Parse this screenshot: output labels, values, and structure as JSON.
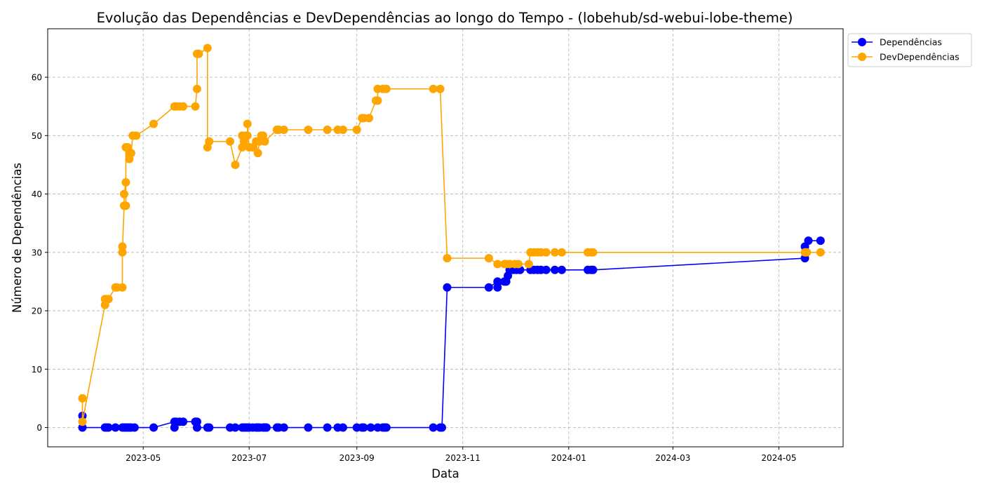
{
  "chart_data": {
    "type": "line",
    "title": "Evolução das Dependências e DevDependências ao longo do Tempo - (lobehub/sd-webui-lobe-theme)",
    "xlabel": "Data",
    "ylabel": "Número de Dependências",
    "x_ticks": [
      "2023-05",
      "2023-07",
      "2023-09",
      "2023-11",
      "2024-01",
      "2024-03",
      "2024-05"
    ],
    "x_tick_dates": [
      "2023-05-01",
      "2023-07-01",
      "2023-09-01",
      "2023-11-01",
      "2024-01-01",
      "2024-03-01",
      "2024-05-01"
    ],
    "xlim": [
      "2023-03-07",
      "2024-06-07"
    ],
    "y_ticks": [
      "0",
      "10",
      "20",
      "30",
      "40",
      "50",
      "60"
    ],
    "y_tick_values": [
      0,
      10,
      20,
      30,
      40,
      50,
      60
    ],
    "ylim": [
      -3.3,
      68.3
    ],
    "grid": true,
    "legend_position": "outside-top-right",
    "series": [
      {
        "name": "Dependências",
        "color": "#0000ff",
        "points": [
          [
            "2023-03-27",
            2
          ],
          [
            "2023-03-27",
            0
          ],
          [
            "2023-04-09",
            0
          ],
          [
            "2023-04-10",
            0
          ],
          [
            "2023-04-11",
            0
          ],
          [
            "2023-04-15",
            0
          ],
          [
            "2023-04-19",
            0
          ],
          [
            "2023-04-20",
            0
          ],
          [
            "2023-04-21",
            0
          ],
          [
            "2023-04-22",
            0
          ],
          [
            "2023-04-23",
            0
          ],
          [
            "2023-04-24",
            0
          ],
          [
            "2023-04-26",
            0
          ],
          [
            "2023-05-07",
            0
          ],
          [
            "2023-05-19",
            1
          ],
          [
            "2023-05-19",
            0
          ],
          [
            "2023-05-20",
            1
          ],
          [
            "2023-05-22",
            1
          ],
          [
            "2023-05-24",
            1
          ],
          [
            "2023-05-31",
            1
          ],
          [
            "2023-06-01",
            1
          ],
          [
            "2023-06-01",
            0
          ],
          [
            "2023-06-07",
            0
          ],
          [
            "2023-06-08",
            0
          ],
          [
            "2023-06-20",
            0
          ],
          [
            "2023-06-23",
            0
          ],
          [
            "2023-06-27",
            0
          ],
          [
            "2023-06-28",
            0
          ],
          [
            "2023-06-29",
            0
          ],
          [
            "2023-06-30",
            0
          ],
          [
            "2023-07-01",
            0
          ],
          [
            "2023-07-03",
            0
          ],
          [
            "2023-07-05",
            0
          ],
          [
            "2023-07-06",
            0
          ],
          [
            "2023-07-07",
            0
          ],
          [
            "2023-07-09",
            0
          ],
          [
            "2023-07-10",
            0
          ],
          [
            "2023-07-11",
            0
          ],
          [
            "2023-07-17",
            0
          ],
          [
            "2023-07-18",
            0
          ],
          [
            "2023-07-21",
            0
          ],
          [
            "2023-08-04",
            0
          ],
          [
            "2023-08-15",
            0
          ],
          [
            "2023-08-21",
            0
          ],
          [
            "2023-08-24",
            0
          ],
          [
            "2023-09-01",
            0
          ],
          [
            "2023-09-04",
            0
          ],
          [
            "2023-09-05",
            0
          ],
          [
            "2023-09-09",
            0
          ],
          [
            "2023-09-13",
            0
          ],
          [
            "2023-09-16",
            0
          ],
          [
            "2023-09-17",
            0
          ],
          [
            "2023-09-18",
            0
          ],
          [
            "2023-10-15",
            0
          ],
          [
            "2023-10-19",
            0
          ],
          [
            "2023-10-20",
            0
          ],
          [
            "2023-10-23",
            24
          ],
          [
            "2023-11-16",
            24
          ],
          [
            "2023-11-21",
            25
          ],
          [
            "2023-11-21",
            24
          ],
          [
            "2023-11-25",
            25
          ],
          [
            "2023-11-26",
            25
          ],
          [
            "2023-11-27",
            26
          ],
          [
            "2023-11-28",
            27
          ],
          [
            "2023-11-30",
            27
          ],
          [
            "2023-12-02",
            27
          ],
          [
            "2023-12-04",
            27
          ],
          [
            "2023-12-10",
            27
          ],
          [
            "2023-12-12",
            27
          ],
          [
            "2023-12-14",
            27
          ],
          [
            "2023-12-16",
            27
          ],
          [
            "2023-12-19",
            27
          ],
          [
            "2023-12-24",
            27
          ],
          [
            "2023-12-28",
            27
          ],
          [
            "2024-01-12",
            27
          ],
          [
            "2024-01-14",
            27
          ],
          [
            "2024-01-15",
            27
          ],
          [
            "2024-05-16",
            29
          ],
          [
            "2024-05-16",
            31
          ],
          [
            "2024-05-17",
            30
          ],
          [
            "2024-05-18",
            32
          ],
          [
            "2024-05-25",
            32
          ]
        ]
      },
      {
        "name": "DevDependências",
        "color": "#ffa500",
        "points": [
          [
            "2023-03-27",
            5
          ],
          [
            "2023-03-27",
            1
          ],
          [
            "2023-04-09",
            21
          ],
          [
            "2023-04-09",
            22
          ],
          [
            "2023-04-10",
            22
          ],
          [
            "2023-04-11",
            22
          ],
          [
            "2023-04-15",
            24
          ],
          [
            "2023-04-16",
            24
          ],
          [
            "2023-04-19",
            24
          ],
          [
            "2023-04-19",
            31
          ],
          [
            "2023-04-19",
            30
          ],
          [
            "2023-04-20",
            38
          ],
          [
            "2023-04-20",
            40
          ],
          [
            "2023-04-21",
            42
          ],
          [
            "2023-04-21",
            38
          ],
          [
            "2023-04-21",
            48
          ],
          [
            "2023-04-22",
            48
          ],
          [
            "2023-04-23",
            47
          ],
          [
            "2023-04-23",
            46
          ],
          [
            "2023-04-24",
            47
          ],
          [
            "2023-04-25",
            50
          ],
          [
            "2023-04-27",
            50
          ],
          [
            "2023-05-07",
            52
          ],
          [
            "2023-05-19",
            55
          ],
          [
            "2023-05-20",
            55
          ],
          [
            "2023-05-22",
            55
          ],
          [
            "2023-05-24",
            55
          ],
          [
            "2023-05-31",
            55
          ],
          [
            "2023-06-01",
            58
          ],
          [
            "2023-06-01",
            64
          ],
          [
            "2023-06-02",
            64
          ],
          [
            "2023-06-07",
            65
          ],
          [
            "2023-06-07",
            48
          ],
          [
            "2023-06-08",
            49
          ],
          [
            "2023-06-20",
            49
          ],
          [
            "2023-06-23",
            45
          ],
          [
            "2023-06-27",
            48
          ],
          [
            "2023-06-27",
            50
          ],
          [
            "2023-06-28",
            49
          ],
          [
            "2023-06-29",
            50
          ],
          [
            "2023-06-30",
            50
          ],
          [
            "2023-06-30",
            52
          ],
          [
            "2023-07-01",
            48
          ],
          [
            "2023-07-03",
            48
          ],
          [
            "2023-07-05",
            49
          ],
          [
            "2023-07-06",
            47
          ],
          [
            "2023-07-07",
            49
          ],
          [
            "2023-07-08",
            50
          ],
          [
            "2023-07-09",
            50
          ],
          [
            "2023-07-10",
            49
          ],
          [
            "2023-07-17",
            51
          ],
          [
            "2023-07-18",
            51
          ],
          [
            "2023-07-21",
            51
          ],
          [
            "2023-08-04",
            51
          ],
          [
            "2023-08-15",
            51
          ],
          [
            "2023-08-21",
            51
          ],
          [
            "2023-08-24",
            51
          ],
          [
            "2023-09-01",
            51
          ],
          [
            "2023-09-04",
            53
          ],
          [
            "2023-09-05",
            53
          ],
          [
            "2023-09-08",
            53
          ],
          [
            "2023-09-12",
            56
          ],
          [
            "2023-09-13",
            56
          ],
          [
            "2023-09-13",
            58
          ],
          [
            "2023-09-16",
            58
          ],
          [
            "2023-09-18",
            58
          ],
          [
            "2023-10-15",
            58
          ],
          [
            "2023-10-19",
            58
          ],
          [
            "2023-10-23",
            29
          ],
          [
            "2023-11-16",
            29
          ],
          [
            "2023-11-21",
            28
          ],
          [
            "2023-11-25",
            28
          ],
          [
            "2023-11-26",
            28
          ],
          [
            "2023-11-28",
            28
          ],
          [
            "2023-12-01",
            28
          ],
          [
            "2023-12-03",
            28
          ],
          [
            "2023-12-09",
            28
          ],
          [
            "2023-12-10",
            30
          ],
          [
            "2023-12-12",
            30
          ],
          [
            "2023-12-14",
            30
          ],
          [
            "2023-12-16",
            30
          ],
          [
            "2023-12-19",
            30
          ],
          [
            "2023-12-24",
            30
          ],
          [
            "2023-12-28",
            30
          ],
          [
            "2024-01-12",
            30
          ],
          [
            "2024-01-14",
            30
          ],
          [
            "2024-01-15",
            30
          ],
          [
            "2024-05-16",
            30
          ],
          [
            "2024-05-17",
            30
          ],
          [
            "2024-05-25",
            30
          ]
        ]
      }
    ]
  }
}
